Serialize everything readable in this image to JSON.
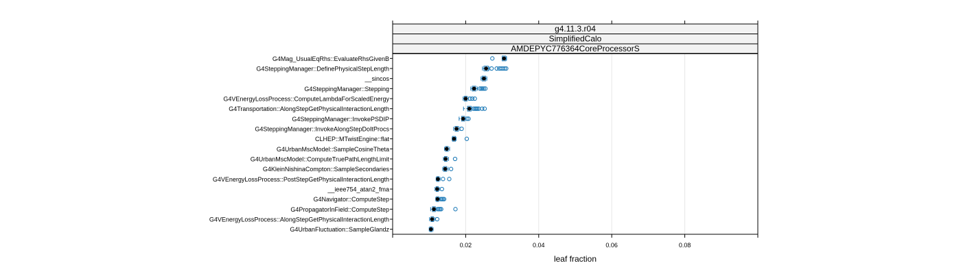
{
  "chart_data": {
    "type": "bwplot",
    "strips": [
      "g4.11.3.r04",
      "SimplifiedCalo",
      "AMDEPYC776364CoreProcessorS"
    ],
    "xlabel": "leaf fraction",
    "ylabel": "",
    "xlim": [
      0.0,
      0.1
    ],
    "xticks": [
      0.02,
      0.04,
      0.06,
      0.08
    ],
    "xtick_labels": [
      "0.02",
      "0.04",
      "0.06",
      "0.08"
    ],
    "grid": true,
    "colors": {
      "points": "#1f7bb8",
      "median": "#000000",
      "box": "#1f7bb8",
      "strip_bg": "#f2f2f2",
      "grid": "#e6e6e6"
    },
    "rows": [
      {
        "label": "G4Mag_UsualEqRhs::EvaluateRhsGivenB",
        "q1": 0.03,
        "median": 0.0305,
        "q3": 0.031,
        "wmin": 0.03,
        "wmax": 0.0312,
        "outliers": [
          0.0273
        ]
      },
      {
        "label": "G4SteppingManager::DefinePhysicalStepLength",
        "q1": 0.025,
        "median": 0.0256,
        "q3": 0.0262,
        "wmin": 0.0246,
        "wmax": 0.0265,
        "outliers": [
          0.0271,
          0.0285,
          0.0292,
          0.0297,
          0.0302,
          0.0307,
          0.0311
        ]
      },
      {
        "label": "__sincos",
        "q1": 0.0245,
        "median": 0.025,
        "q3": 0.0255,
        "wmin": 0.0242,
        "wmax": 0.0258,
        "outliers": []
      },
      {
        "label": "G4SteppingManager::Stepping",
        "q1": 0.0218,
        "median": 0.0223,
        "q3": 0.0228,
        "wmin": 0.0214,
        "wmax": 0.0232,
        "outliers": [
          0.0239,
          0.0243,
          0.0246,
          0.025,
          0.0254
        ]
      },
      {
        "label": "G4VEnergyLossProcess::ComputeLambdaForScaledEnergy",
        "q1": 0.0196,
        "median": 0.02,
        "q3": 0.0204,
        "wmin": 0.0193,
        "wmax": 0.0208,
        "outliers": [
          0.0212,
          0.0218,
          0.0225
        ]
      },
      {
        "label": "G4Transportation::AlongStepGetPhysicalInteractionLength",
        "q1": 0.0205,
        "median": 0.021,
        "q3": 0.0215,
        "wmin": 0.0194,
        "wmax": 0.0218,
        "outliers": [
          0.0222,
          0.0226,
          0.0229,
          0.0232,
          0.0236,
          0.0245,
          0.0252
        ]
      },
      {
        "label": "G4SteppingManager::InvokePSDIP",
        "q1": 0.0189,
        "median": 0.0193,
        "q3": 0.0197,
        "wmin": 0.0182,
        "wmax": 0.02,
        "outliers": [
          0.0204,
          0.0208
        ]
      },
      {
        "label": "G4SteppingManager::InvokeAlongStepDoItProcs",
        "q1": 0.0171,
        "median": 0.0175,
        "q3": 0.018,
        "wmin": 0.0167,
        "wmax": 0.0184,
        "outliers": [
          0.0189
        ]
      },
      {
        "label": "CLHEP::MTwistEngine::flat",
        "q1": 0.0164,
        "median": 0.0168,
        "q3": 0.0172,
        "wmin": 0.0163,
        "wmax": 0.0174,
        "outliers": [
          0.0203
        ]
      },
      {
        "label": "G4UrbanMscModel::SampleCosineTheta",
        "q1": 0.0145,
        "median": 0.0148,
        "q3": 0.0152,
        "wmin": 0.0142,
        "wmax": 0.0156,
        "outliers": []
      },
      {
        "label": "G4UrbanMscModel::ComputeTruePathLengthLimit",
        "q1": 0.0142,
        "median": 0.0145,
        "q3": 0.0149,
        "wmin": 0.0139,
        "wmax": 0.0153,
        "outliers": [
          0.0171
        ]
      },
      {
        "label": "G4KleinNishinaCompton::SampleSecondaries",
        "q1": 0.014,
        "median": 0.0144,
        "q3": 0.0148,
        "wmin": 0.0137,
        "wmax": 0.0152,
        "outliers": [
          0.016
        ]
      },
      {
        "label": "G4VEnergyLossProcess::PostStepGetPhysicalInteractionLength",
        "q1": 0.0121,
        "median": 0.0124,
        "q3": 0.0127,
        "wmin": 0.0119,
        "wmax": 0.013,
        "outliers": [
          0.0138,
          0.0155
        ]
      },
      {
        "label": "__ieee754_atan2_fma",
        "q1": 0.0119,
        "median": 0.0122,
        "q3": 0.0125,
        "wmin": 0.0116,
        "wmax": 0.0128,
        "outliers": [
          0.0135
        ]
      },
      {
        "label": "G4Navigator::ComputeStep",
        "q1": 0.012,
        "median": 0.0123,
        "q3": 0.0126,
        "wmin": 0.0118,
        "wmax": 0.0129,
        "outliers": [
          0.0132,
          0.0135,
          0.0138,
          0.0141
        ]
      },
      {
        "label": "G4PropagatorInField::ComputeStep",
        "q1": 0.0109,
        "median": 0.0113,
        "q3": 0.0117,
        "wmin": 0.0104,
        "wmax": 0.012,
        "outliers": [
          0.0124,
          0.0127,
          0.013,
          0.0133,
          0.0172
        ]
      },
      {
        "label": "G4VEnergyLossProcess::AlongStepGetPhysicalInteractionLength",
        "q1": 0.0105,
        "median": 0.0108,
        "q3": 0.0112,
        "wmin": 0.0101,
        "wmax": 0.0115,
        "outliers": [
          0.0122
        ]
      },
      {
        "label": "G4UrbanFluctuation::SampleGlandz",
        "q1": 0.0102,
        "median": 0.0105,
        "q3": 0.0108,
        "wmin": 0.01,
        "wmax": 0.0111,
        "outliers": []
      }
    ]
  }
}
